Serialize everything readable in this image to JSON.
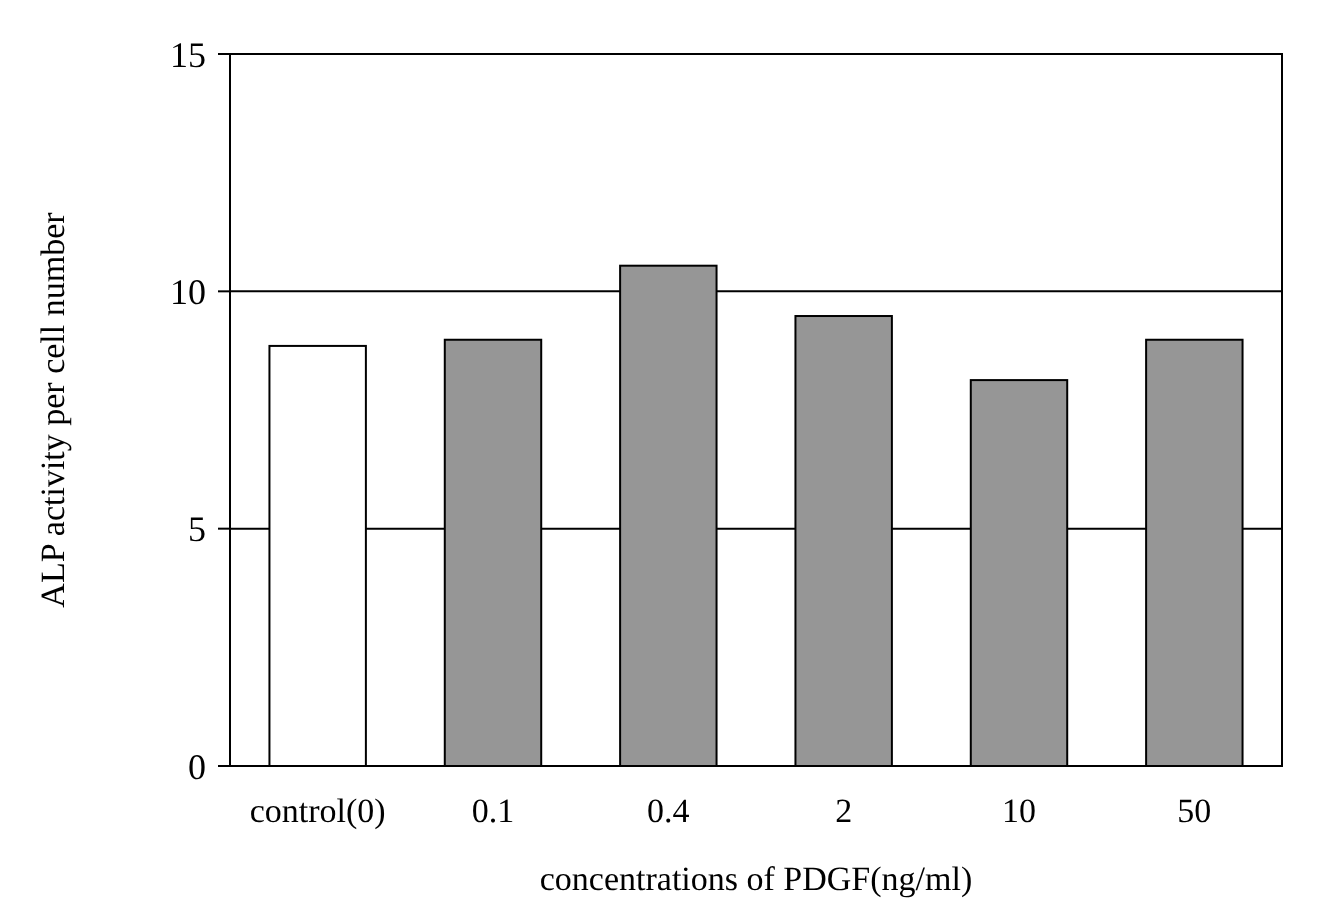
{
  "chart_data": {
    "type": "bar",
    "xlabel": "concentrations of PDGF(ng/ml)",
    "ylabel": "ALP activity per cell number",
    "categories": [
      "control(0)",
      "0.1",
      "0.4",
      "2",
      "10",
      "50"
    ],
    "values": [
      8.85,
      8.98,
      10.54,
      9.48,
      8.13,
      8.98
    ],
    "colors": [
      "#ffffff",
      "#969696",
      "#969696",
      "#969696",
      "#969696",
      "#969696"
    ],
    "ylim": [
      0,
      15
    ],
    "yticks": [
      0,
      5,
      10,
      15
    ],
    "grid": "y"
  }
}
